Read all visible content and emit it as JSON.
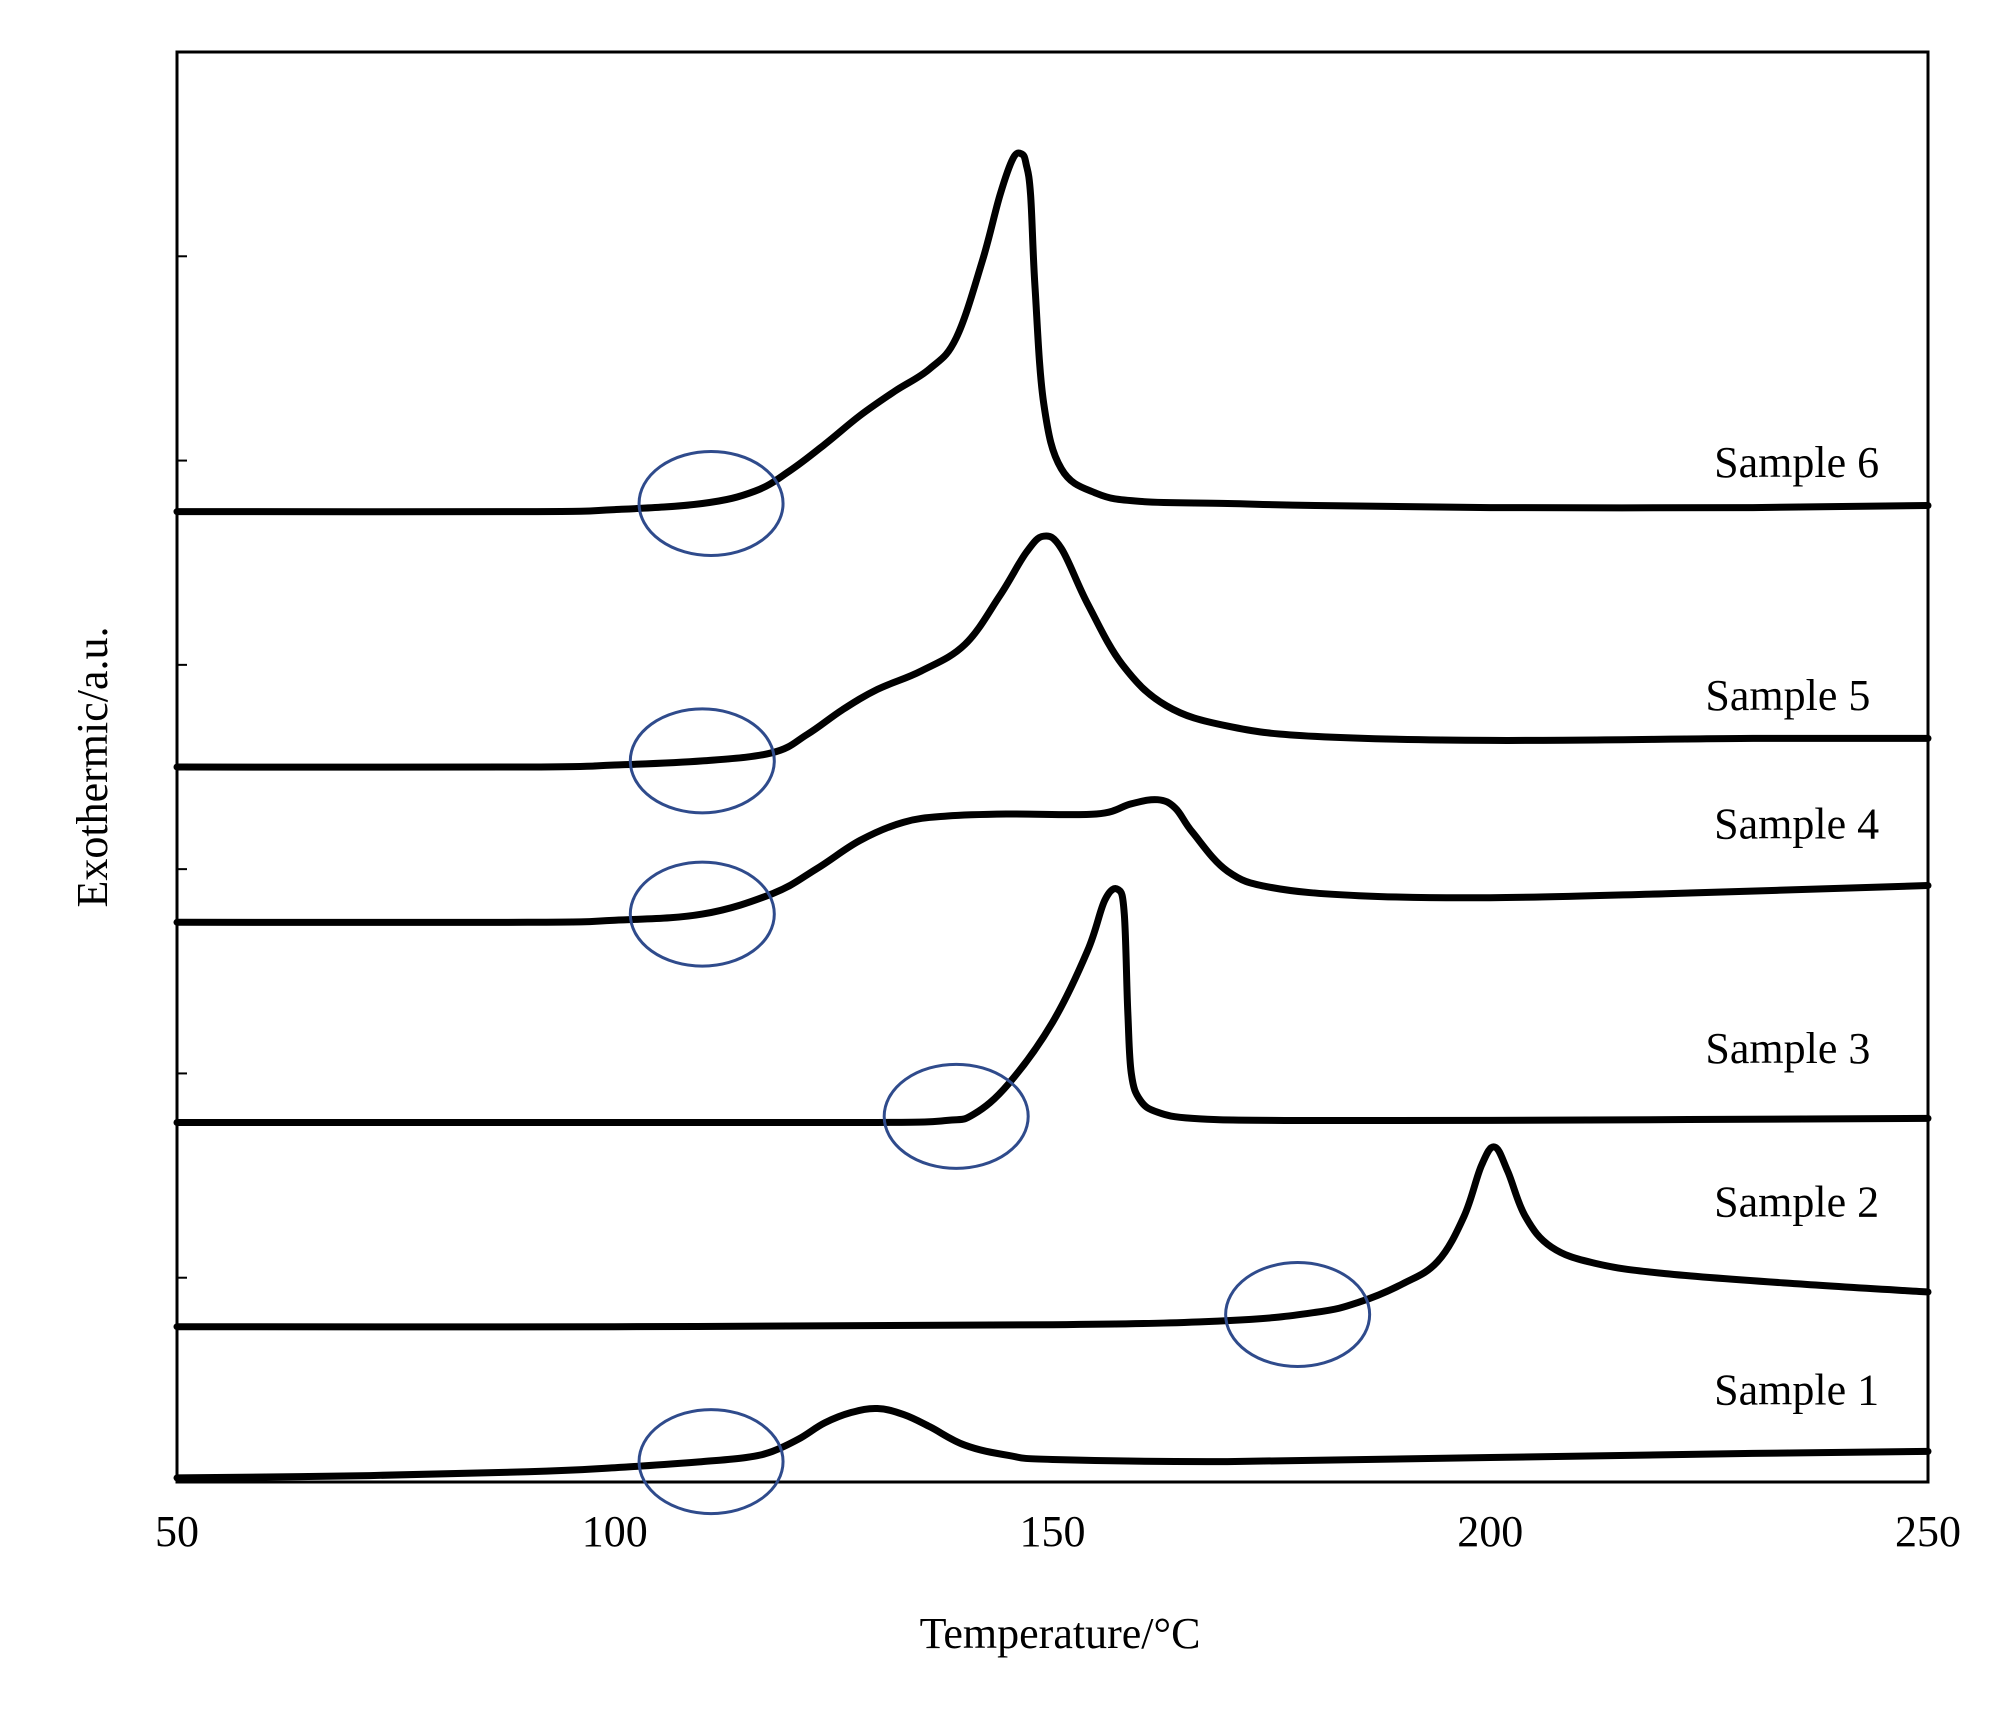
{
  "chart_data": {
    "type": "line",
    "xlabel": "Temperature/°C",
    "ylabel": "Exothermic/a.u.",
    "xlim": [
      50,
      250
    ],
    "ylim": [
      0,
      7
    ],
    "x_ticks": [
      "50",
      "100",
      "150",
      "200",
      "250"
    ],
    "y_ticks": [
      0,
      1,
      2,
      3,
      4,
      5,
      6
    ],
    "y_tick_labels_shown": false,
    "grid": false,
    "legend": "none",
    "line_color": "#000000",
    "marker_color": "#2f4b8c",
    "series": [
      {
        "name": "Sample 1",
        "x": [
          50,
          70,
          90,
          100,
          110,
          115,
          118,
          121,
          124,
          127,
          130,
          133,
          136,
          140,
          145,
          150,
          170,
          200,
          230,
          250
        ],
        "y": [
          0.02,
          0.03,
          0.05,
          0.07,
          0.1,
          0.12,
          0.15,
          0.21,
          0.29,
          0.34,
          0.36,
          0.33,
          0.27,
          0.18,
          0.13,
          0.11,
          0.1,
          0.12,
          0.14,
          0.15
        ],
        "label_anchor": [
          235,
          0.38
        ]
      },
      {
        "name": "Sample 2",
        "x": [
          50,
          100,
          150,
          170,
          180,
          185,
          190,
          194,
          197,
          199,
          200.5,
          202,
          204,
          207,
          212,
          220,
          235,
          250
        ],
        "y": [
          0.76,
          0.76,
          0.77,
          0.79,
          0.83,
          0.88,
          0.97,
          1.08,
          1.3,
          1.55,
          1.64,
          1.52,
          1.3,
          1.15,
          1.07,
          1.02,
          0.97,
          0.93
        ],
        "label_anchor": [
          235,
          1.3
        ]
      },
      {
        "name": "Sample 3",
        "x": [
          50,
          100,
          130,
          138,
          141,
          145,
          150,
          154,
          156,
          157.5,
          158.2,
          158.6,
          159,
          160,
          162,
          166,
          175,
          200,
          250
        ],
        "y": [
          1.76,
          1.76,
          1.76,
          1.77,
          1.8,
          1.95,
          2.25,
          2.6,
          2.85,
          2.9,
          2.78,
          2.3,
          2.0,
          1.87,
          1.81,
          1.78,
          1.77,
          1.77,
          1.78
        ],
        "label_anchor": [
          234,
          2.05
        ]
      },
      {
        "name": "Sample 4",
        "x": [
          50,
          90,
          100,
          110,
          118,
          123,
          128,
          133,
          138,
          145,
          155,
          159,
          162,
          164,
          166,
          170,
          175,
          185,
          200,
          220,
          250
        ],
        "y": [
          2.74,
          2.74,
          2.75,
          2.78,
          2.88,
          3.0,
          3.14,
          3.23,
          3.26,
          3.27,
          3.27,
          3.32,
          3.34,
          3.3,
          3.18,
          2.99,
          2.91,
          2.87,
          2.86,
          2.88,
          2.92
        ],
        "label_anchor": [
          235,
          3.15
        ]
      },
      {
        "name": "Sample 5",
        "x": [
          50,
          90,
          100,
          110,
          118,
          122,
          126,
          130,
          135,
          140,
          144,
          147,
          149,
          151,
          154,
          158,
          163,
          170,
          180,
          200,
          230,
          250
        ],
        "y": [
          3.5,
          3.5,
          3.51,
          3.53,
          3.57,
          3.66,
          3.78,
          3.88,
          3.97,
          4.1,
          4.34,
          4.55,
          4.63,
          4.57,
          4.3,
          4.0,
          3.8,
          3.7,
          3.65,
          3.63,
          3.64,
          3.64
        ],
        "label_anchor": [
          234,
          3.78
        ]
      },
      {
        "name": "Sample 6",
        "x": [
          50,
          90,
          100,
          110,
          116,
          120,
          124,
          128,
          132,
          136,
          139,
          142,
          144,
          145.5,
          146.5,
          147,
          147.5,
          148,
          149,
          151,
          155,
          160,
          170,
          180,
          200,
          230,
          250
        ],
        "y": [
          4.75,
          4.75,
          4.76,
          4.79,
          4.85,
          4.95,
          5.08,
          5.22,
          5.34,
          5.45,
          5.6,
          5.98,
          6.3,
          6.48,
          6.5,
          6.45,
          6.3,
          5.85,
          5.28,
          4.96,
          4.84,
          4.8,
          4.79,
          4.78,
          4.77,
          4.77,
          4.78
        ],
        "label_anchor": [
          235,
          4.92
        ]
      }
    ],
    "onset_markers": [
      {
        "series": "Sample 1",
        "x": 111,
        "y": 0.1
      },
      {
        "series": "Sample 2",
        "x": 178,
        "y": 0.82
      },
      {
        "series": "Sample 3",
        "x": 139,
        "y": 1.79
      },
      {
        "series": "Sample 4",
        "x": 110,
        "y": 2.78
      },
      {
        "series": "Sample 5",
        "x": 110,
        "y": 3.53
      },
      {
        "series": "Sample 6",
        "x": 111,
        "y": 4.79
      }
    ]
  }
}
